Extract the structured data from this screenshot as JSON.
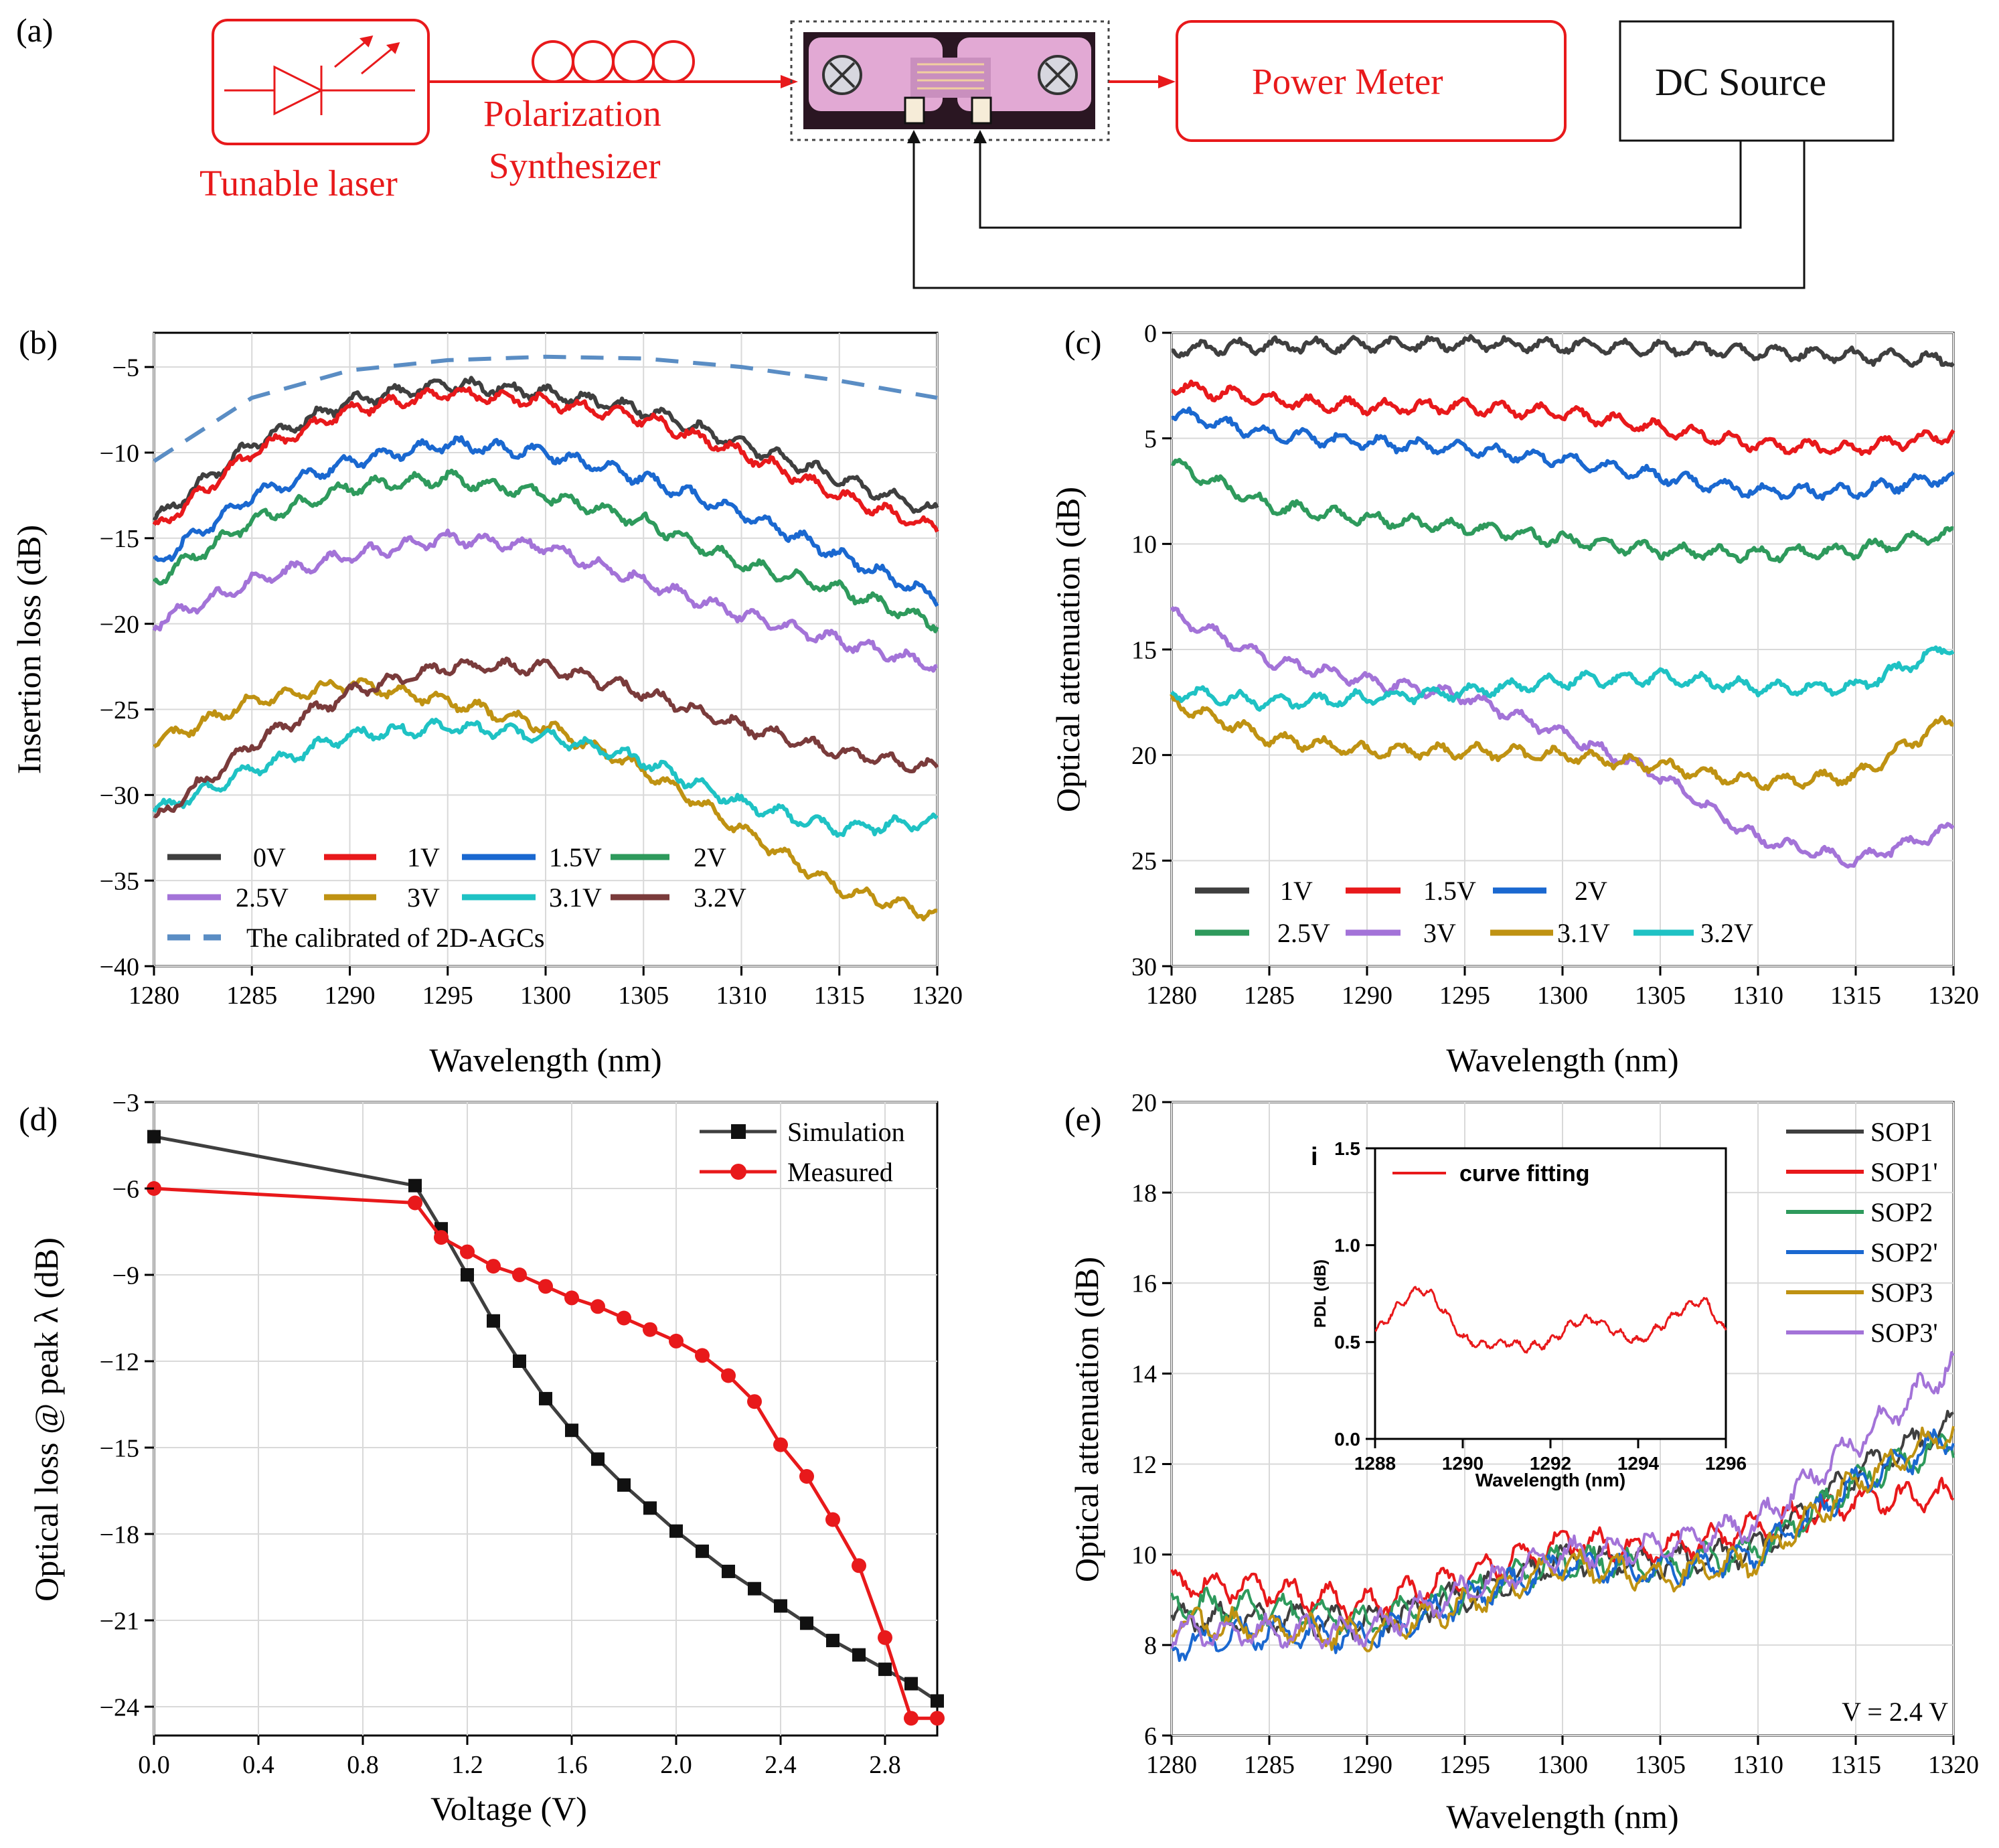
{
  "panel_labels": {
    "a": "(a)",
    "b": "(b)",
    "c": "(c)",
    "d": "(d)",
    "e": "(e)"
  },
  "diagram": {
    "laser_label": "Tunable laser",
    "synth_label_1": "Polarization",
    "synth_label_2": "Synthesizer",
    "power_meter": "Power Meter",
    "dc_source": "DC Source",
    "colors": {
      "signal": "#e8191b",
      "control": "#111111",
      "chip": "#e2a9d4"
    }
  },
  "chart_data": [
    {
      "id": "b",
      "type": "line",
      "xlabel": "Wavelength (nm)",
      "ylabel": "Insertion loss (dB)",
      "xlim": [
        1280,
        1320
      ],
      "ylim": [
        -40,
        -3
      ],
      "xticks": [
        1280,
        1285,
        1290,
        1295,
        1300,
        1305,
        1310,
        1315,
        1320
      ],
      "yticks": [
        -5,
        -10,
        -15,
        -20,
        -25,
        -30,
        -35,
        -40
      ],
      "series": [
        {
          "name": "0V",
          "color": "#3f3f3f",
          "x": [
            1280,
            1285,
            1290,
            1295,
            1300,
            1305,
            1310,
            1315,
            1320
          ],
          "y": [
            -14,
            -9.5,
            -7,
            -6,
            -6.5,
            -7.5,
            -9.5,
            -11.5,
            -13.5
          ]
        },
        {
          "name": "1V",
          "color": "#e8191b",
          "x": [
            1280,
            1285,
            1290,
            1295,
            1300,
            1305,
            1310,
            1315,
            1320
          ],
          "y": [
            -14.5,
            -10,
            -7.5,
            -6.5,
            -7,
            -8,
            -10,
            -12.5,
            -14.5
          ]
        },
        {
          "name": "1.5V",
          "color": "#1a68d0",
          "x": [
            1280,
            1285,
            1290,
            1295,
            1300,
            1305,
            1310,
            1315,
            1320
          ],
          "y": [
            -16.5,
            -12.5,
            -10.5,
            -9.5,
            -10,
            -11.5,
            -13.5,
            -16,
            -18.5
          ]
        },
        {
          "name": "2V",
          "color": "#2e9a5c",
          "x": [
            1280,
            1285,
            1290,
            1295,
            1300,
            1305,
            1310,
            1315,
            1320
          ],
          "y": [
            -17.5,
            -14,
            -12,
            -11.5,
            -12.5,
            -14,
            -16.5,
            -18,
            -20
          ]
        },
        {
          "name": "2.5V",
          "color": "#a373d8",
          "x": [
            1280,
            1285,
            1290,
            1295,
            1300,
            1305,
            1310,
            1315,
            1320
          ],
          "y": [
            -20,
            -17.5,
            -16,
            -15,
            -15.5,
            -17.5,
            -19.5,
            -21,
            -22.5
          ]
        },
        {
          "name": "3V",
          "color": "#bf9212",
          "x": [
            1280,
            1285,
            1290,
            1295,
            1300,
            1305,
            1310,
            1315,
            1320
          ],
          "y": [
            -27,
            -24.5,
            -23.5,
            -24.5,
            -26,
            -28.5,
            -32,
            -35.5,
            -37
          ]
        },
        {
          "name": "3.1V",
          "color": "#1fc2c4",
          "x": [
            1280,
            1285,
            1290,
            1295,
            1300,
            1305,
            1310,
            1315,
            1320
          ],
          "y": [
            -31,
            -28.5,
            -26.5,
            -26,
            -26.5,
            -28,
            -30.5,
            -32,
            -31.5
          ]
        },
        {
          "name": "3.2V",
          "color": "#7a3b3b",
          "x": [
            1280,
            1285,
            1290,
            1295,
            1300,
            1305,
            1310,
            1315,
            1320
          ],
          "y": [
            -31.5,
            -27,
            -24,
            -22.5,
            -22.5,
            -24,
            -26,
            -27.5,
            -28.5
          ]
        },
        {
          "name": "The calibrated of 2D-AGCs",
          "color": "#5a8dc4",
          "dashed": true,
          "x": [
            1280,
            1285,
            1290,
            1295,
            1300,
            1305,
            1310,
            1315,
            1320
          ],
          "y": [
            -10.5,
            -6.8,
            -5.2,
            -4.6,
            -4.4,
            -4.5,
            -5,
            -5.8,
            -6.8
          ]
        }
      ]
    },
    {
      "id": "c",
      "type": "line",
      "xlabel": "Wavelength (nm)",
      "ylabel": "Optical attenuation (dB)",
      "xlim": [
        1280,
        1320
      ],
      "ylim": [
        0,
        30
      ],
      "y_inverted": true,
      "xticks": [
        1280,
        1285,
        1290,
        1295,
        1300,
        1305,
        1310,
        1315,
        1320
      ],
      "yticks": [
        0,
        5,
        10,
        15,
        20,
        25,
        30
      ],
      "series": [
        {
          "name": "1V",
          "color": "#3f3f3f",
          "x": [
            1280,
            1285,
            1290,
            1295,
            1300,
            1305,
            1310,
            1315,
            1320
          ],
          "y": [
            0.8,
            0.6,
            0.6,
            0.5,
            0.6,
            0.7,
            0.9,
            1.1,
            1.3
          ]
        },
        {
          "name": "1.5V",
          "color": "#e8191b",
          "x": [
            1280,
            1285,
            1290,
            1295,
            1300,
            1305,
            1310,
            1315,
            1320
          ],
          "y": [
            2.5,
            3.2,
            3.5,
            3.5,
            3.8,
            4.5,
            5.3,
            5.5,
            4.8
          ]
        },
        {
          "name": "2V",
          "color": "#1a68d0",
          "x": [
            1280,
            1285,
            1290,
            1295,
            1300,
            1305,
            1310,
            1315,
            1320
          ],
          "y": [
            3.8,
            4.8,
            5.2,
            5.5,
            6,
            6.8,
            7.5,
            7.5,
            6.8
          ]
        },
        {
          "name": "2.5V",
          "color": "#2e9a5c",
          "x": [
            1280,
            1285,
            1290,
            1295,
            1300,
            1305,
            1310,
            1315,
            1320
          ],
          "y": [
            6.2,
            8.2,
            8.8,
            9.2,
            9.8,
            10.3,
            10.5,
            10.3,
            9.5
          ]
        },
        {
          "name": "3V",
          "color": "#a373d8",
          "x": [
            1280,
            1285,
            1290,
            1295,
            1300,
            1305,
            1310,
            1315,
            1320
          ],
          "y": [
            13.3,
            15.5,
            16.5,
            17.2,
            19,
            21,
            24,
            25,
            23.5
          ]
        },
        {
          "name": "3.1V",
          "color": "#bf9212",
          "x": [
            1280,
            1285,
            1290,
            1295,
            1300,
            1305,
            1310,
            1315,
            1320
          ],
          "y": [
            17.5,
            19.2,
            19.8,
            19.8,
            20,
            20.5,
            21.3,
            21,
            18.2
          ]
        },
        {
          "name": "3.2V",
          "color": "#1fc2c4",
          "x": [
            1280,
            1285,
            1290,
            1295,
            1300,
            1305,
            1310,
            1315,
            1320
          ],
          "y": [
            17,
            17.5,
            17.3,
            17,
            16.5,
            16.3,
            16.8,
            16.8,
            14.8
          ]
        }
      ]
    },
    {
      "id": "d",
      "type": "line",
      "xlabel": "Voltage (V)",
      "ylabel": "Optical loss @ peak λ (dB)",
      "xlim": [
        0,
        3
      ],
      "ylim": [
        -25,
        -3
      ],
      "xticks": [
        "0.0",
        "0.4",
        "0.8",
        "1.2",
        "1.6",
        "2.0",
        "2.4",
        "2.8"
      ],
      "yticks": [
        -3,
        -6,
        -9,
        -12,
        -15,
        -18,
        -21,
        -24
      ],
      "series": [
        {
          "name": "Simulation",
          "color": "#3f3f3f",
          "marker": "square",
          "x": [
            0,
            1.0,
            1.1,
            1.2,
            1.3,
            1.4,
            1.5,
            1.6,
            1.7,
            1.8,
            1.9,
            2.0,
            2.1,
            2.2,
            2.3,
            2.4,
            2.5,
            2.6,
            2.7,
            2.8,
            2.9,
            3.0
          ],
          "y": [
            -4.2,
            -5.9,
            -7.4,
            -9.0,
            -10.6,
            -12.0,
            -13.3,
            -14.4,
            -15.4,
            -16.3,
            -17.1,
            -17.9,
            -18.6,
            -19.3,
            -19.9,
            -20.5,
            -21.1,
            -21.7,
            -22.2,
            -22.7,
            -23.2,
            -23.8
          ]
        },
        {
          "name": "Measured",
          "color": "#e8191b",
          "marker": "circle",
          "x": [
            0,
            1.0,
            1.1,
            1.2,
            1.3,
            1.4,
            1.5,
            1.6,
            1.7,
            1.8,
            1.9,
            2.0,
            2.1,
            2.2,
            2.3,
            2.4,
            2.5,
            2.6,
            2.7,
            2.8,
            2.9,
            3.0
          ],
          "y": [
            -6.0,
            -6.5,
            -7.7,
            -8.2,
            -8.7,
            -9.0,
            -9.4,
            -9.8,
            -10.1,
            -10.5,
            -10.9,
            -11.3,
            -11.8,
            -12.5,
            -13.4,
            -14.9,
            -16.0,
            -17.5,
            -19.1,
            -21.6,
            -24.4,
            -24.4
          ]
        }
      ]
    },
    {
      "id": "e",
      "type": "line",
      "xlabel": "Wavelength (nm)",
      "ylabel": "Optical attenuation (dB)",
      "xlim": [
        1280,
        1320
      ],
      "ylim": [
        6,
        20
      ],
      "xticks": [
        1280,
        1285,
        1290,
        1295,
        1300,
        1305,
        1310,
        1315,
        1320
      ],
      "yticks": [
        6,
        8,
        10,
        12,
        14,
        16,
        18,
        20
      ],
      "annotation": "V = 2.4 V",
      "series": [
        {
          "name": "SOP1",
          "color": "#3f3f3f",
          "x": [
            1280,
            1285,
            1290,
            1295,
            1300,
            1305,
            1310,
            1315,
            1320
          ],
          "y": [
            8.6,
            8.6,
            8.5,
            9.1,
            9.9,
            9.8,
            10.1,
            11.8,
            12.9
          ]
        },
        {
          "name": "SOP1'",
          "color": "#e8191b",
          "x": [
            1280,
            1285,
            1290,
            1295,
            1300,
            1305,
            1310,
            1315,
            1320
          ],
          "y": [
            9.4,
            9.2,
            8.9,
            9.5,
            10.3,
            10.1,
            10.6,
            11.2,
            11.3
          ]
        },
        {
          "name": "SOP2",
          "color": "#2e9a5c",
          "x": [
            1280,
            1285,
            1290,
            1295,
            1300,
            1305,
            1310,
            1315,
            1320
          ],
          "y": [
            8.9,
            8.8,
            8.5,
            9.1,
            9.9,
            9.7,
            10.1,
            11.6,
            12.5
          ]
        },
        {
          "name": "SOP2'",
          "color": "#1a68d0",
          "x": [
            1280,
            1285,
            1290,
            1295,
            1300,
            1305,
            1310,
            1315,
            1320
          ],
          "y": [
            8.0,
            8.3,
            8.2,
            9.0,
            9.8,
            9.6,
            10.0,
            11.6,
            12.6
          ]
        },
        {
          "name": "SOP3",
          "color": "#bf9212",
          "x": [
            1280,
            1285,
            1290,
            1295,
            1300,
            1305,
            1310,
            1315,
            1320
          ],
          "y": [
            8.5,
            8.4,
            8.2,
            8.9,
            9.8,
            9.5,
            9.9,
            11.6,
            12.8
          ]
        },
        {
          "name": "SOP3'",
          "color": "#a373d8",
          "x": [
            1280,
            1285,
            1290,
            1295,
            1300,
            1305,
            1310,
            1315,
            1320
          ],
          "y": [
            8.3,
            8.3,
            8.3,
            9.2,
            10.0,
            10.2,
            10.7,
            12.5,
            14.2
          ]
        }
      ],
      "inset": {
        "label": "i",
        "type": "line",
        "xlabel": "Wavelength (nm)",
        "ylabel": "PDL (dB)",
        "xlim": [
          1288,
          1296
        ],
        "ylim": [
          0,
          1.5
        ],
        "xticks": [
          1288,
          1290,
          1292,
          1294,
          1296
        ],
        "yticks": [
          "0.0",
          "0.5",
          "1.0",
          "1.5"
        ],
        "series": [
          {
            "name": "curve fitting",
            "color": "#e8191b",
            "x": [
              1288,
              1288.5,
              1289,
              1289.3,
              1289.7,
              1290,
              1290.5,
              1291,
              1291.5,
              1292,
              1292.5,
              1293,
              1293.5,
              1294,
              1294.5,
              1295,
              1295.5,
              1296
            ],
            "y": [
              0.55,
              0.68,
              0.78,
              0.74,
              0.62,
              0.52,
              0.48,
              0.5,
              0.47,
              0.5,
              0.6,
              0.62,
              0.55,
              0.5,
              0.58,
              0.67,
              0.72,
              0.55
            ]
          }
        ]
      }
    }
  ]
}
